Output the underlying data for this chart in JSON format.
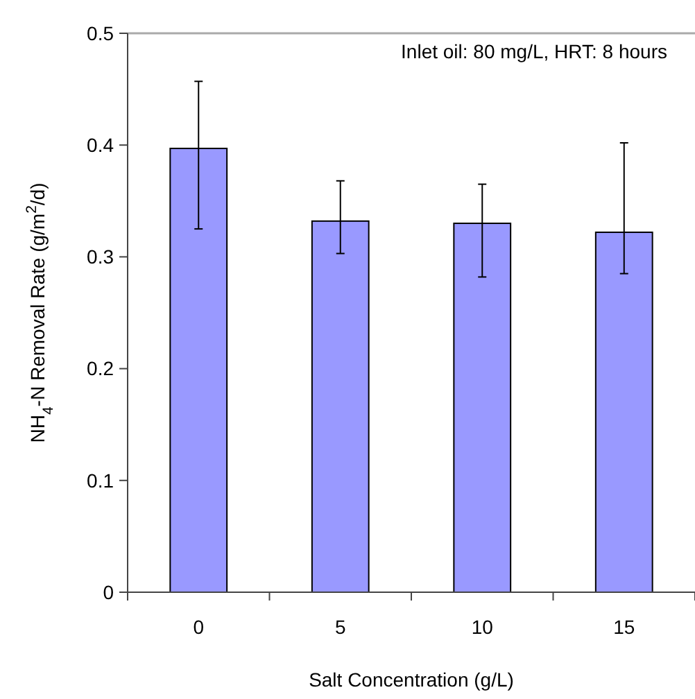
{
  "chart_data": {
    "type": "bar",
    "xlabel": "Salt Concentration (g/L)",
    "ylabel": "NH$_{4}$-N Removal Rate (g/m$^{2}$/d)",
    "categories": [
      "0",
      "5",
      "10",
      "15"
    ],
    "values": [
      0.397,
      0.332,
      0.33,
      0.322
    ],
    "errors": [
      [
        0.325,
        0.457
      ],
      [
        0.303,
        0.368
      ],
      [
        0.282,
        0.365
      ],
      [
        0.285,
        0.402
      ]
    ],
    "color": "#9999ff",
    "ylim": [
      0,
      0.5
    ],
    "yticks": [
      0,
      0.1,
      0.2,
      0.3,
      0.4,
      0.5
    ],
    "annotations": [
      "Inlet oil: 80 mg/L, HRT: 8 hours"
    ]
  }
}
